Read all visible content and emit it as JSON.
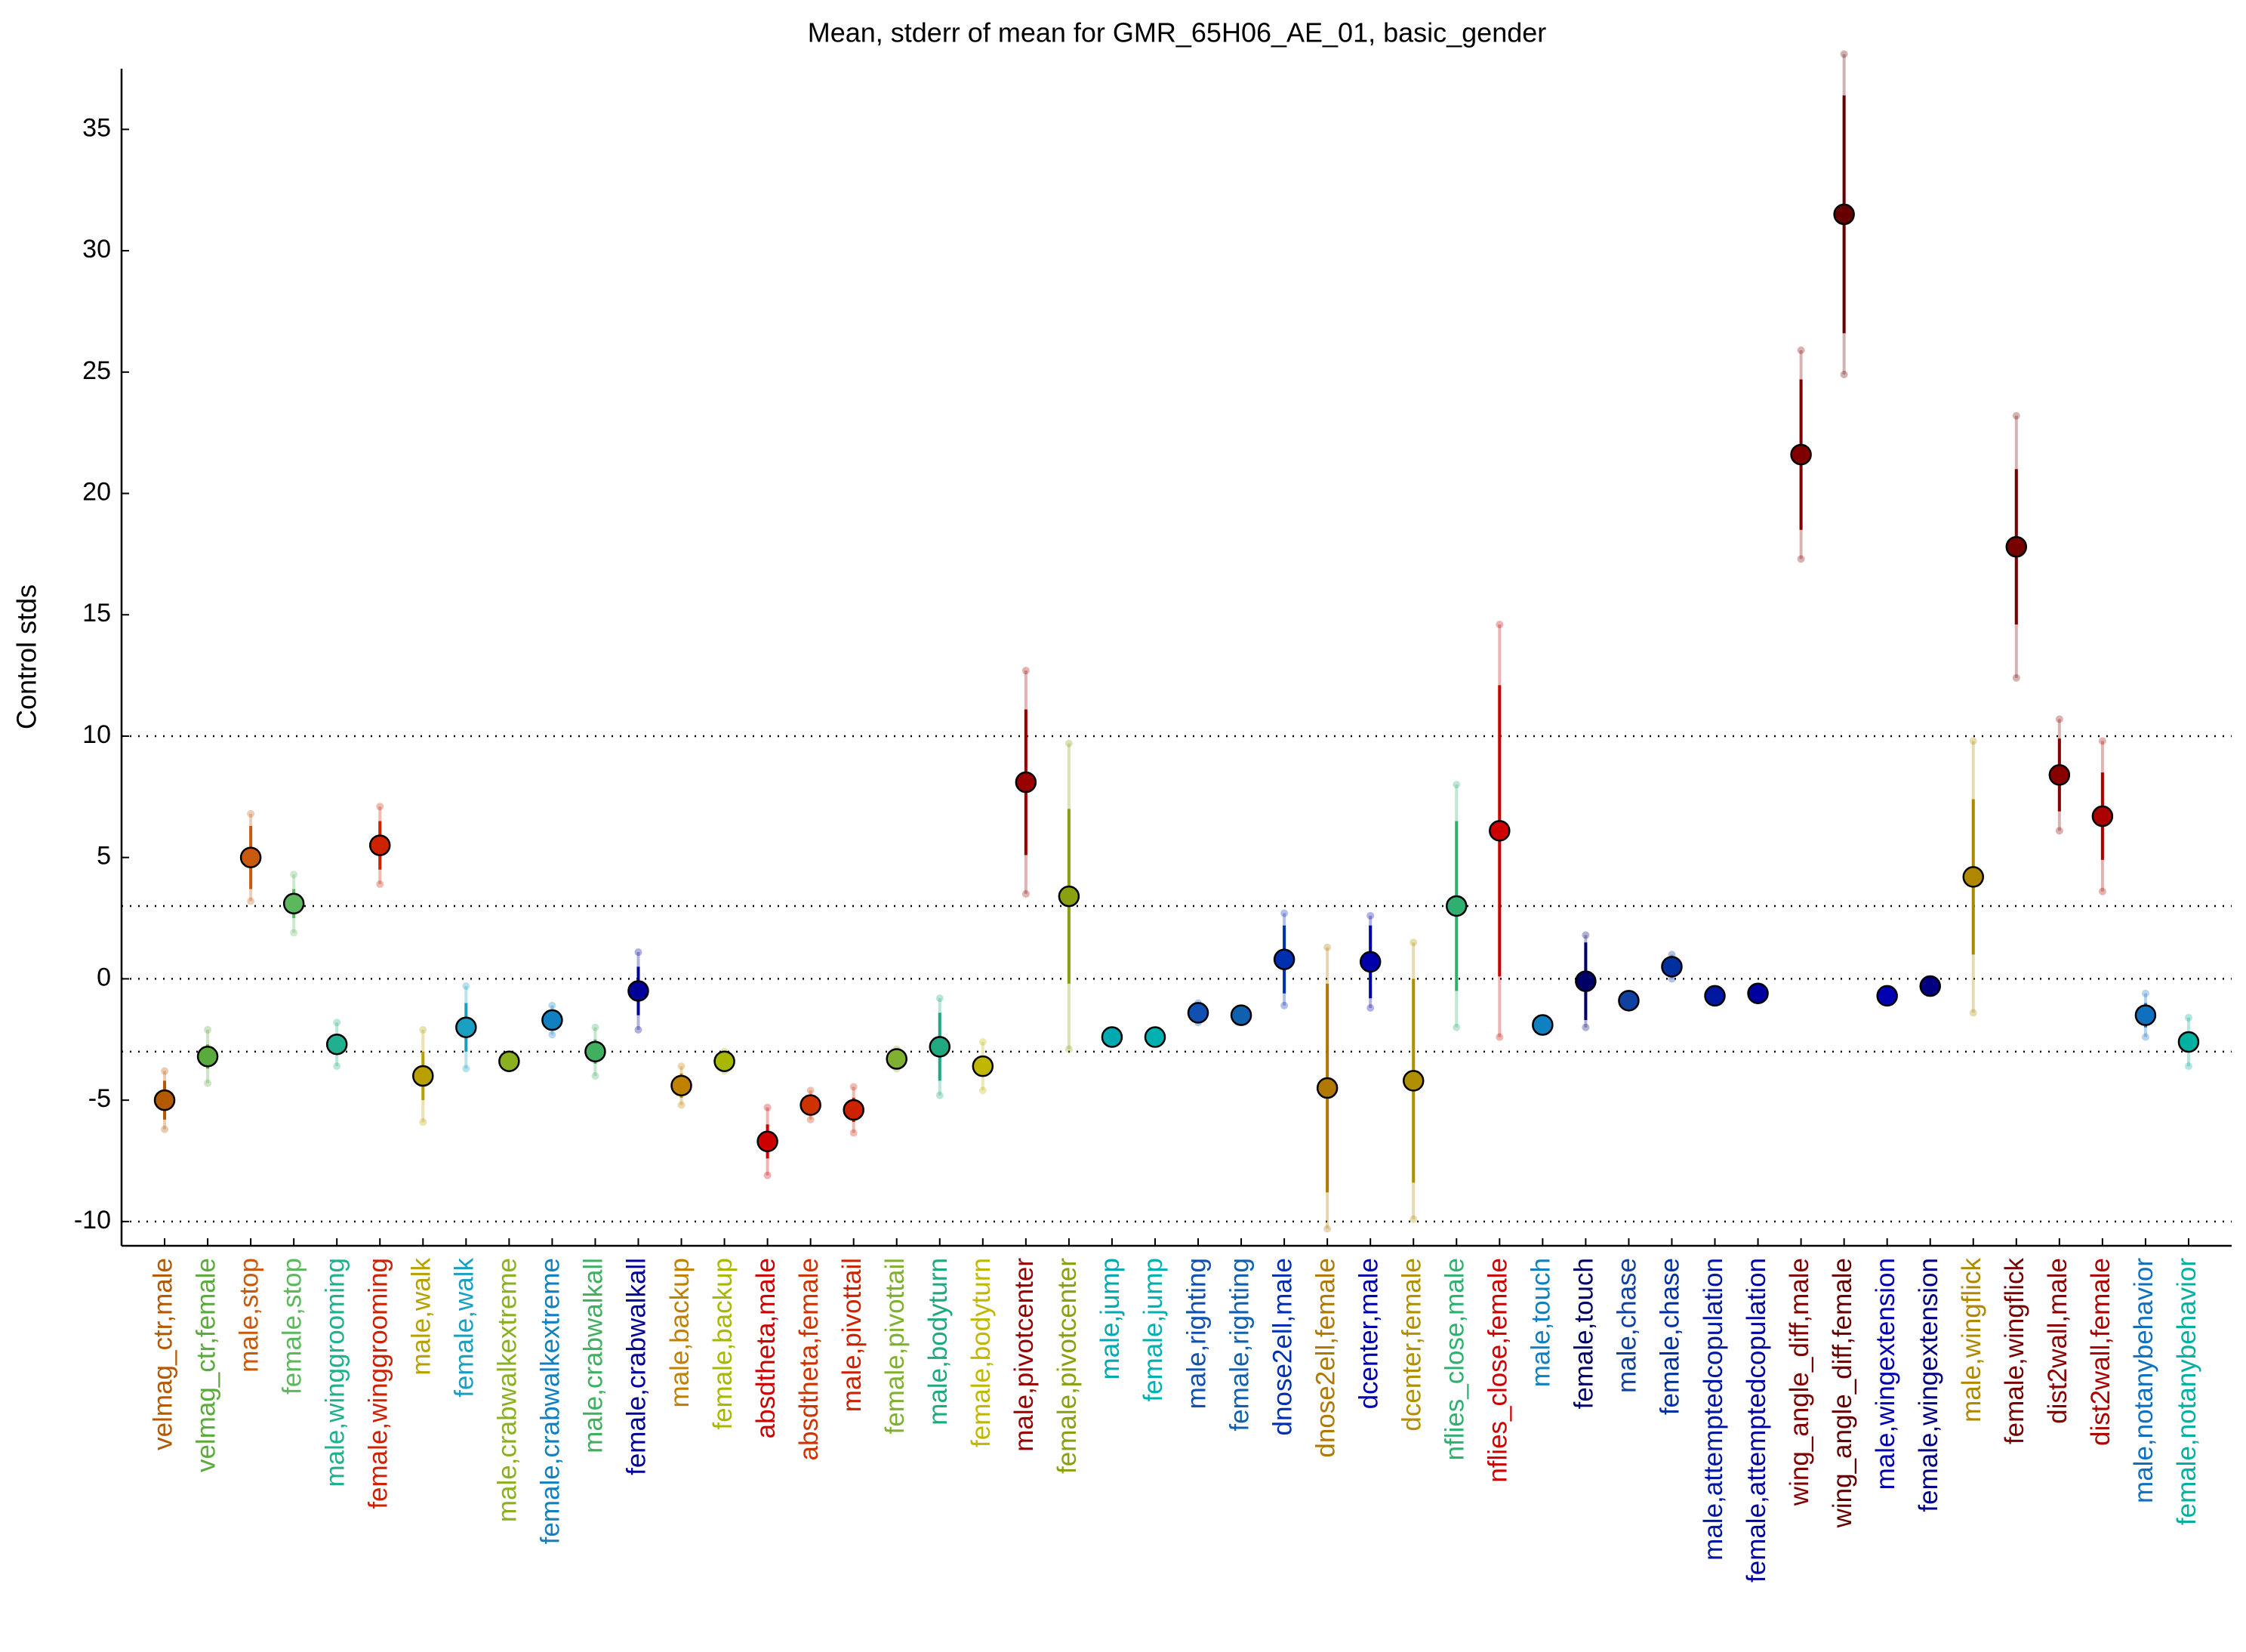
{
  "chart_data": {
    "type": "errorbar",
    "title": "Mean, stderr of mean for GMR_65H06_AE_01, basic_gender",
    "y_label": "Control stds",
    "categories": [
      "velmag_ctr,male",
      "velmag_ctr,female",
      "male,stop",
      "female,stop",
      "male,winggrooming",
      "female,winggrooming",
      "male,walk",
      "female,walk",
      "male,crabwalkextreme",
      "female,crabwalkextreme",
      "male,crabwalkall",
      "female,crabwalkall",
      "male,backup",
      "female,backup",
      "absdtheta,male",
      "absdtheta,female",
      "male,pivottail",
      "female,pivottail",
      "male,bodyturn",
      "female,bodyturn",
      "male,pivotcenter",
      "female,pivotcenter",
      "male,jump",
      "female,jump",
      "male,righting",
      "female,righting",
      "dnose2ell,male",
      "dnose2ell,female",
      "dcenter,male",
      "dcenter,female",
      "nflies_close,male",
      "nflies_close,female",
      "male,touch",
      "female,touch",
      "male,chase",
      "female,chase",
      "male,attemptedcopulation",
      "female,attemptedcopulation",
      "wing_angle_diff,male",
      "wing_angle_diff,female",
      "male,wingextension",
      "female,wingextension",
      "male,wingflick",
      "female,wingflick",
      "dist2wall,male",
      "dist2wall,female",
      "male,notanybehavior",
      "female,notanybehavior"
    ],
    "values": [
      -5.0,
      -3.2,
      5.0,
      3.1,
      -2.7,
      5.5,
      -4.0,
      -2.0,
      -3.4,
      -1.7,
      -3.0,
      -0.5,
      -4.4,
      -3.4,
      -6.7,
      -5.2,
      -5.4,
      -3.3,
      -2.8,
      -3.6,
      8.1,
      3.4,
      -2.4,
      -2.4,
      -1.4,
      -1.5,
      0.8,
      -4.5,
      0.7,
      -4.2,
      3.0,
      6.1,
      -1.9,
      -0.1,
      -0.9,
      0.5,
      -0.7,
      -0.6,
      21.6,
      31.5,
      -0.7,
      -0.3,
      4.2,
      17.8,
      8.4,
      6.7,
      -1.5,
      -2.6
    ],
    "stderr": [
      0.8,
      0.5,
      1.3,
      0.6,
      0.4,
      1.0,
      1.0,
      1.0,
      0.2,
      0.3,
      0.5,
      1.0,
      0.5,
      0.2,
      0.7,
      0.3,
      0.5,
      0.2,
      1.4,
      0.4,
      3.0,
      3.6,
      0.1,
      0.1,
      0.2,
      0.1,
      1.4,
      4.3,
      1.5,
      4.2,
      3.5,
      6.0,
      0.1,
      1.6,
      0.1,
      0.3,
      0.1,
      0.1,
      3.1,
      4.9,
      0.1,
      0.1,
      3.2,
      3.2,
      1.5,
      1.8,
      0.5,
      0.4
    ],
    "std": [
      1.2,
      1.1,
      1.8,
      1.2,
      0.9,
      1.6,
      1.9,
      1.7,
      0.3,
      0.6,
      1.0,
      1.6,
      0.8,
      0.4,
      1.4,
      0.6,
      0.95,
      0.4,
      2.0,
      1.0,
      4.6,
      6.3,
      0.2,
      0.2,
      0.4,
      0.2,
      1.9,
      5.8,
      1.9,
      5.7,
      5.0,
      8.5,
      0.2,
      1.9,
      0.2,
      0.5,
      0.2,
      0.2,
      4.3,
      6.6,
      0.2,
      0.2,
      5.6,
      5.4,
      2.3,
      3.1,
      0.9,
      1.0
    ],
    "colors": [
      "#b35900",
      "#5aaa3c",
      "#c85a10",
      "#5cb85c",
      "#20b090",
      "#cc2200",
      "#b8a000",
      "#1a9fc0",
      "#8ab020",
      "#1080c0",
      "#40b060",
      "#000099",
      "#c08000",
      "#a8b800",
      "#cc0000",
      "#cc3300",
      "#cc2200",
      "#80b030",
      "#20a880",
      "#c0b800",
      "#990000",
      "#8aa010",
      "#00a8b0",
      "#00b0b0",
      "#1050b0",
      "#1060b0",
      "#0030b0",
      "#b07800",
      "#0000aa",
      "#b09000",
      "#30b070",
      "#cc0000",
      "#1080c0",
      "#000066",
      "#1040a0",
      "#0030a0",
      "#0018a0",
      "#0000a0",
      "#800000",
      "#660000",
      "#0000b0",
      "#000080",
      "#b08800",
      "#770000",
      "#880000",
      "#aa0000",
      "#1070c0",
      "#00b0a0"
    ],
    "ylim": [
      -11,
      37.5
    ],
    "yticks": [
      -10,
      -5,
      0,
      5,
      10,
      15,
      20,
      25,
      30,
      35
    ],
    "reference_lines": [
      10,
      3,
      0,
      -3,
      -10
    ]
  }
}
